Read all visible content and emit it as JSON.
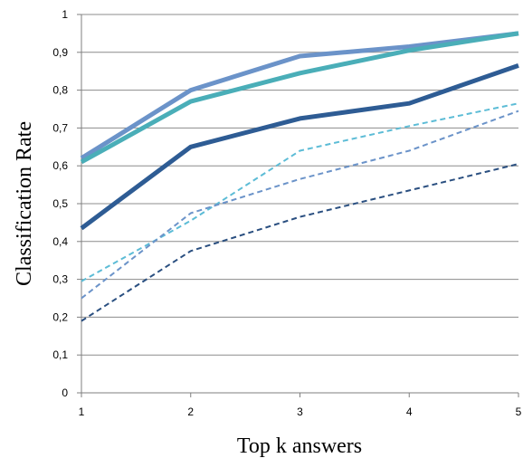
{
  "chart_data": {
    "type": "line",
    "title": "",
    "xlabel": "Top k answers",
    "ylabel": "Classification Rate",
    "x": [
      1,
      2,
      3,
      4,
      5
    ],
    "xlim": [
      1,
      5
    ],
    "ylim": [
      0,
      1
    ],
    "x_tick_labels": [
      "1",
      "2",
      "3",
      "4",
      "5"
    ],
    "y_tick_labels": [
      "0",
      "0,1",
      "0,2",
      "0,3",
      "0,4",
      "0,5",
      "0,6",
      "0,7",
      "0,8",
      "0,9",
      "1"
    ],
    "grid": "horizontal",
    "legend": "none",
    "series": [
      {
        "values": [
          0.62,
          0.8,
          0.89,
          0.915,
          0.95
        ],
        "color": "#6b93c9",
        "style": "solid"
      },
      {
        "values": [
          0.61,
          0.77,
          0.845,
          0.905,
          0.95
        ],
        "color": "#4aaeb8",
        "style": "solid"
      },
      {
        "values": [
          0.435,
          0.65,
          0.725,
          0.765,
          0.865
        ],
        "color": "#2e5c94",
        "style": "solid"
      },
      {
        "values": [
          0.295,
          0.455,
          0.64,
          0.705,
          0.765
        ],
        "color": "#5cbcd6",
        "style": "dashed"
      },
      {
        "values": [
          0.25,
          0.475,
          0.565,
          0.64,
          0.745
        ],
        "color": "#6b93c9",
        "style": "dashed"
      },
      {
        "values": [
          0.19,
          0.375,
          0.465,
          0.535,
          0.605
        ],
        "color": "#2a4f80",
        "style": "dashed"
      }
    ]
  }
}
